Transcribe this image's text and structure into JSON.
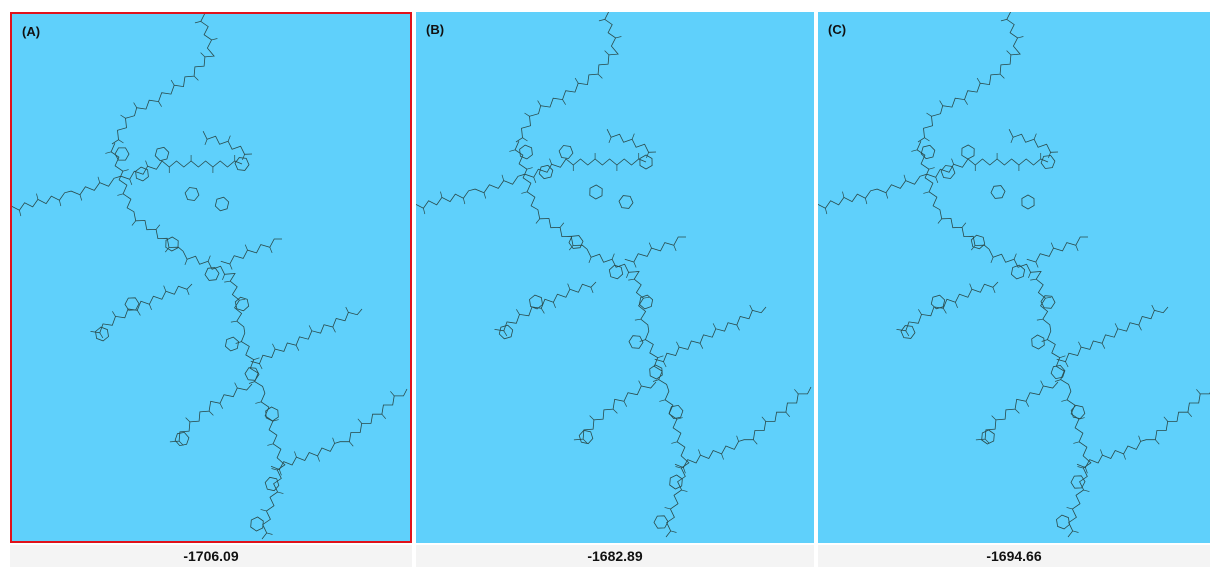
{
  "panels": [
    {
      "label": "(A)",
      "value": -1706.09
    },
    {
      "label": "(B)",
      "value": -1682.89
    },
    {
      "label": "(C)",
      "value": -1694.66
    }
  ]
}
